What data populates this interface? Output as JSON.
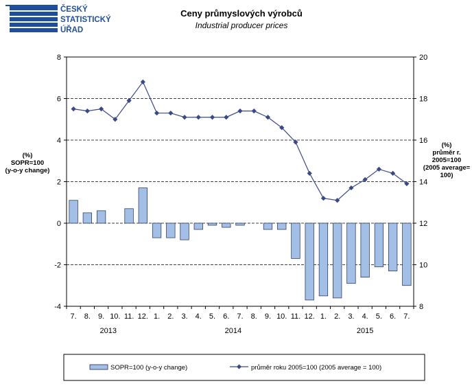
{
  "header": {
    "logo_lines": [
      "ČESKÝ",
      "STATISTICKÝ",
      "ÚŘAD"
    ],
    "title": "Ceny průmyslových  výrobců",
    "subtitle": "Industrial producer prices"
  },
  "colors": {
    "bar_fill": "#a3bfe6",
    "bar_stroke": "#1b2d52",
    "line": "#3a4a86",
    "logo_blue": "#1f4f9c"
  },
  "chart_data": {
    "type": "bar",
    "categories": [
      "7.",
      "8.",
      "9.",
      "10.",
      "11.",
      "12.",
      "1.",
      "2.",
      "3.",
      "4.",
      "5.",
      "6.",
      "7.",
      "8.",
      "9.",
      "10.",
      "11.",
      "12.",
      "1.",
      "2.",
      "3.",
      "4.",
      "5.",
      "6.",
      "7."
    ],
    "year_labels": [
      {
        "label": "2013",
        "first_index": 0,
        "last_index": 5
      },
      {
        "label": "2014",
        "first_index": 6,
        "last_index": 17
      },
      {
        "label": "2015",
        "first_index": 18,
        "last_index": 24
      }
    ],
    "series": [
      {
        "name": "SOPR=100 (y-o-y change)",
        "type": "bar",
        "axis": "left",
        "values": [
          1.1,
          0.5,
          0.6,
          0.0,
          0.7,
          1.7,
          -0.7,
          -0.7,
          -0.8,
          -0.3,
          -0.1,
          -0.2,
          -0.1,
          0.0,
          -0.3,
          -0.3,
          -1.7,
          -3.7,
          -3.5,
          -3.6,
          -2.9,
          -2.6,
          -2.1,
          -2.3,
          -3.0
        ]
      },
      {
        "name": "průměr roku 2005=100 (2005 average = 100)",
        "type": "line",
        "axis": "right",
        "values": [
          17.5,
          17.4,
          17.5,
          17.0,
          17.9,
          18.8,
          17.3,
          17.3,
          17.1,
          17.1,
          17.1,
          17.1,
          17.4,
          17.4,
          17.1,
          16.6,
          15.9,
          14.4,
          13.2,
          13.1,
          13.7,
          14.1,
          14.6,
          14.4,
          13.9
        ]
      }
    ],
    "y_left": {
      "min": -4,
      "max": 8,
      "ticks": [
        -4,
        -2,
        0,
        2,
        4,
        6,
        8
      ],
      "label": [
        "(%)",
        "SOPR=100",
        "(y-o-y change)"
      ]
    },
    "y_right": {
      "min": 8,
      "max": 20,
      "ticks": [
        8,
        10,
        12,
        14,
        16,
        18,
        20
      ],
      "label": [
        "(%)",
        "průměr r.",
        "2005=100",
        "(2005 average=",
        "100)"
      ]
    },
    "grid": "horizontal dashed",
    "legend_position": "bottom"
  }
}
